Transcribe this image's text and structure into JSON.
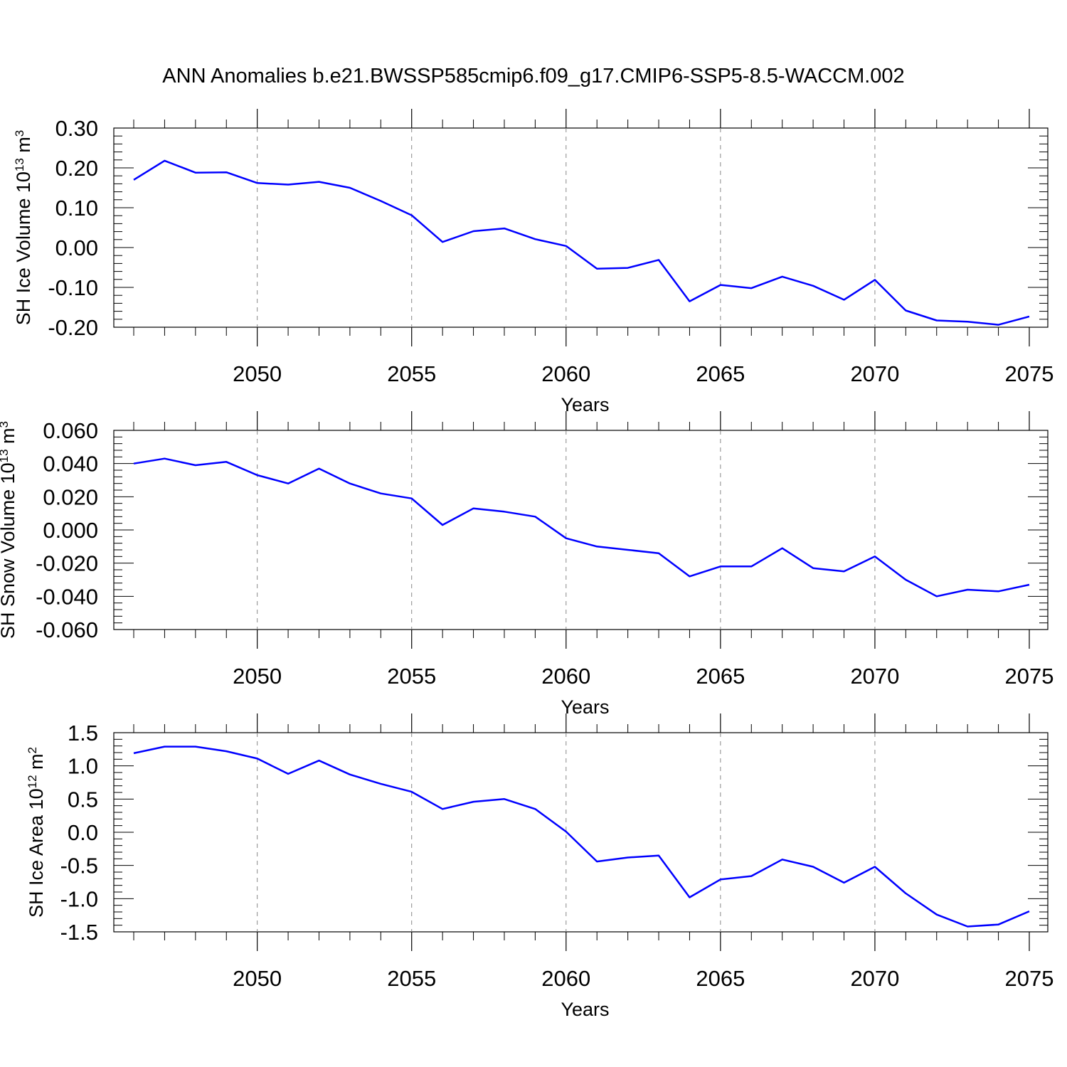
{
  "title": "ANN Anomalies b.e21.BWSSP585cmip6.f09_g17.CMIP6-SSP5-8.5-WACCM.002",
  "line_color": "#0000ff",
  "chart_data": [
    {
      "type": "line",
      "title": "",
      "xlabel": "Years",
      "ylabel": {
        "text": "SH Ice Volume 10",
        "exponent": "13",
        "unit": " m",
        "unit_exponent": "3"
      },
      "xlim": [
        2046,
        2075
      ],
      "ylim": [
        -0.2,
        0.3
      ],
      "x_ticks": [
        "2050",
        "2055",
        "2060",
        "2065",
        "2070",
        "2075"
      ],
      "y_ticks": [
        "0.30",
        "0.20",
        "0.10",
        "0.00",
        "-0.10",
        "-0.20"
      ],
      "grid": "vertical dashed at major x ticks",
      "x": [
        2046,
        2047,
        2048,
        2049,
        2050,
        2051,
        2052,
        2053,
        2054,
        2055,
        2056,
        2057,
        2058,
        2059,
        2060,
        2061,
        2062,
        2063,
        2064,
        2065,
        2066,
        2067,
        2068,
        2069,
        2070,
        2071,
        2072,
        2073,
        2074,
        2075
      ],
      "values": [
        0.17,
        0.218,
        0.188,
        0.189,
        0.162,
        0.158,
        0.165,
        0.15,
        0.117,
        0.081,
        0.014,
        0.041,
        0.048,
        0.021,
        0.004,
        -0.053,
        -0.051,
        -0.031,
        -0.135,
        -0.094,
        -0.102,
        -0.073,
        -0.096,
        -0.131,
        -0.081,
        -0.158,
        -0.183,
        -0.186,
        -0.194,
        -0.173
      ]
    },
    {
      "type": "line",
      "title": "",
      "xlabel": "Years",
      "ylabel": {
        "text": "SH Snow Volume 10",
        "exponent": "13",
        "unit": " m",
        "unit_exponent": "3"
      },
      "xlim": [
        2046,
        2075
      ],
      "ylim": [
        -0.06,
        0.06
      ],
      "x_ticks": [
        "2050",
        "2055",
        "2060",
        "2065",
        "2070",
        "2075"
      ],
      "y_ticks": [
        "0.060",
        "0.040",
        "0.020",
        "0.000",
        "-0.020",
        "-0.040",
        "-0.060"
      ],
      "grid": "vertical dashed at major x ticks",
      "x": [
        2046,
        2047,
        2048,
        2049,
        2050,
        2051,
        2052,
        2053,
        2054,
        2055,
        2056,
        2057,
        2058,
        2059,
        2060,
        2061,
        2062,
        2063,
        2064,
        2065,
        2066,
        2067,
        2068,
        2069,
        2070,
        2071,
        2072,
        2073,
        2074,
        2075
      ],
      "values": [
        0.04,
        0.043,
        0.039,
        0.041,
        0.033,
        0.028,
        0.037,
        0.028,
        0.022,
        0.019,
        0.003,
        0.013,
        0.011,
        0.008,
        -0.005,
        -0.01,
        -0.012,
        -0.014,
        -0.028,
        -0.022,
        -0.022,
        -0.011,
        -0.023,
        -0.025,
        -0.016,
        -0.03,
        -0.04,
        -0.036,
        -0.037,
        -0.033
      ]
    },
    {
      "type": "line",
      "title": "",
      "xlabel": "Years",
      "ylabel": {
        "text": "SH Ice Area 10",
        "exponent": "12",
        "unit": " m",
        "unit_exponent": "2"
      },
      "xlim": [
        2046,
        2075
      ],
      "ylim": [
        -1.5,
        1.5
      ],
      "x_ticks": [
        "2050",
        "2055",
        "2060",
        "2065",
        "2070",
        "2075"
      ],
      "y_ticks": [
        "1.5",
        "1.0",
        "0.5",
        "0.0",
        "-0.5",
        "-1.0",
        "-1.5"
      ],
      "grid": "vertical dashed at major x ticks",
      "x": [
        2046,
        2047,
        2048,
        2049,
        2050,
        2051,
        2052,
        2053,
        2054,
        2055,
        2056,
        2057,
        2058,
        2059,
        2060,
        2061,
        2062,
        2063,
        2064,
        2065,
        2066,
        2067,
        2068,
        2069,
        2070,
        2071,
        2072,
        2073,
        2074,
        2075
      ],
      "values": [
        1.19,
        1.29,
        1.29,
        1.22,
        1.11,
        0.88,
        1.08,
        0.87,
        0.73,
        0.61,
        0.35,
        0.46,
        0.5,
        0.35,
        0.01,
        -0.44,
        -0.38,
        -0.35,
        -0.98,
        -0.71,
        -0.66,
        -0.41,
        -0.52,
        -0.76,
        -0.52,
        -0.92,
        -1.24,
        -1.42,
        -1.39,
        -1.19
      ]
    }
  ]
}
